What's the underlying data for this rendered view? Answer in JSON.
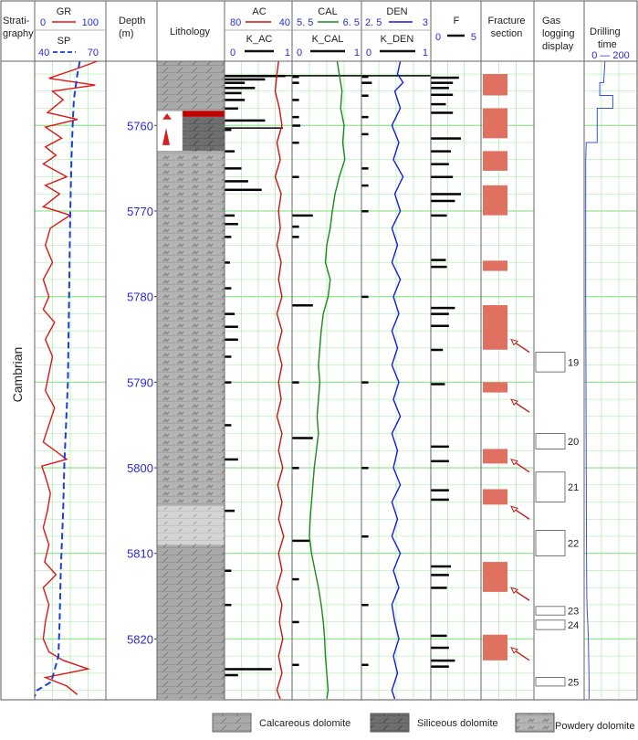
{
  "headers": {
    "strat": [
      "Strati-",
      "graphy"
    ],
    "depth": [
      "Depth",
      "(m)"
    ],
    "lithology": "Lithology",
    "gr": {
      "name": "GR",
      "min": "0",
      "max": "100"
    },
    "sp": {
      "name": "SP",
      "min": "40",
      "max": "70"
    },
    "ac": {
      "name": "AC",
      "min": "80",
      "max": "40"
    },
    "k_ac": {
      "name": "K_AC",
      "min": "0",
      "max": "1"
    },
    "cal": {
      "name": "CAL",
      "min": "5. 5",
      "max": "6. 5"
    },
    "k_cal": {
      "name": "K_CAL",
      "min": "0",
      "max": "1"
    },
    "den": {
      "name": "DEN",
      "min": "2. 5",
      "max": "3"
    },
    "k_den": {
      "name": "K_DEN",
      "min": "0",
      "max": "1"
    },
    "f": {
      "name": "F",
      "min": "0",
      "max": "5"
    },
    "fracture": [
      "Fracture",
      "section"
    ],
    "gas": [
      "Gas",
      "logging",
      "display"
    ],
    "drill": [
      "Drilling",
      "time"
    ],
    "drill_range": "0 — 200"
  },
  "stratigraphy": "Cambrian",
  "legend": {
    "calcareous": "Calcareous dolomite",
    "siliceous": "Siliceous dolomite",
    "powdery": "Powdery dolomite"
  },
  "colors": {
    "grid": "#9be89b",
    "gr": "#e01515",
    "sp": "#1a3fd6",
    "ac": "#cc1111",
    "cal": "#1a8a1a",
    "den": "#1a1ae0",
    "fracture": "#e07060",
    "drill": "#3a4fe0",
    "calcareous": "#a9a9a9",
    "siliceous": "#6e6e6e",
    "powdery": "#c8c8c8"
  },
  "chart_data": {
    "type": "line",
    "depth_range": [
      5752.5,
      5827
    ],
    "depth_ticks": [
      5760,
      5770,
      5780,
      5790,
      5800,
      5810,
      5820
    ],
    "lithology": [
      {
        "top": 5752.5,
        "bottom": 5758.3,
        "type": "calcareous"
      },
      {
        "top": 5758.3,
        "bottom": 5759.0,
        "type": "red"
      },
      {
        "top": 5759.0,
        "bottom": 5763.0,
        "type": "siliceous"
      },
      {
        "top": 5763.0,
        "bottom": 5804.5,
        "type": "powdery"
      },
      {
        "top": 5804.5,
        "bottom": 5809.0,
        "type": "light"
      },
      {
        "top": 5809.0,
        "bottom": 5827.0,
        "type": "calcareous"
      }
    ],
    "fracture_sections": [
      {
        "top": 5754.0,
        "bottom": 5756.5
      },
      {
        "top": 5758.0,
        "bottom": 5761.5
      },
      {
        "top": 5763.0,
        "bottom": 5765.3
      },
      {
        "top": 5767.0,
        "bottom": 5770.5
      },
      {
        "top": 5775.8,
        "bottom": 5777.0
      },
      {
        "top": 5781.0,
        "bottom": 5786.2
      },
      {
        "top": 5790.0,
        "bottom": 5791.2
      },
      {
        "top": 5797.8,
        "bottom": 5799.5
      },
      {
        "top": 5802.5,
        "bottom": 5804.3
      },
      {
        "top": 5811.0,
        "bottom": 5814.5
      },
      {
        "top": 5819.5,
        "bottom": 5822.5
      }
    ],
    "fracture_arrows": [
      5786.5,
      5793.5,
      5800.5,
      5806.0,
      5815.5,
      5822.5
    ],
    "gas_display": [
      {
        "label": "19",
        "top": 5786.5,
        "bottom": 5788.8
      },
      {
        "label": "20",
        "top": 5796.0,
        "bottom": 5797.8
      },
      {
        "label": "21",
        "top": 5800.5,
        "bottom": 5804.0
      },
      {
        "label": "22",
        "top": 5807.3,
        "bottom": 5810.3
      },
      {
        "label": "23",
        "top": 5816.2,
        "bottom": 5817.2
      },
      {
        "label": "24",
        "top": 5817.8,
        "bottom": 5818.9
      },
      {
        "label": "25",
        "top": 5824.5,
        "bottom": 5825.5
      }
    ],
    "gr": [
      [
        5752.5,
        88
      ],
      [
        5753.5,
        55
      ],
      [
        5754.5,
        20
      ],
      [
        5755.3,
        85
      ],
      [
        5756,
        25
      ],
      [
        5757,
        40
      ],
      [
        5758.5,
        18
      ],
      [
        5759.3,
        60
      ],
      [
        5760.2,
        15
      ],
      [
        5761.5,
        38
      ],
      [
        5762.5,
        15
      ],
      [
        5763.5,
        30
      ],
      [
        5764.5,
        12
      ],
      [
        5766,
        45
      ],
      [
        5767,
        15
      ],
      [
        5768,
        35
      ],
      [
        5769.5,
        12
      ],
      [
        5770.5,
        50
      ],
      [
        5772,
        22
      ],
      [
        5774,
        15
      ],
      [
        5776,
        25
      ],
      [
        5778,
        12
      ],
      [
        5780,
        20
      ],
      [
        5781.5,
        12
      ],
      [
        5783,
        28
      ],
      [
        5785,
        15
      ],
      [
        5787,
        25
      ],
      [
        5789,
        20
      ],
      [
        5791,
        15
      ],
      [
        5793,
        28
      ],
      [
        5795,
        20
      ],
      [
        5797,
        12
      ],
      [
        5799,
        45
      ],
      [
        5799.8,
        10
      ],
      [
        5801,
        15
      ],
      [
        5803,
        22
      ],
      [
        5805,
        18
      ],
      [
        5807,
        12
      ],
      [
        5809,
        20
      ],
      [
        5811,
        14
      ],
      [
        5812.5,
        30
      ],
      [
        5814,
        12
      ],
      [
        5816,
        20
      ],
      [
        5818,
        15
      ],
      [
        5820,
        12
      ],
      [
        5821.5,
        20
      ],
      [
        5822.5,
        40
      ],
      [
        5823.5,
        75
      ],
      [
        5824.5,
        15
      ],
      [
        5825.5,
        45
      ],
      [
        5826.5,
        60
      ]
    ],
    "sp": [
      [
        5752.5,
        59
      ],
      [
        5754,
        58
      ],
      [
        5757,
        56.5
      ],
      [
        5760,
        56
      ],
      [
        5764,
        55.5
      ],
      [
        5770,
        55
      ],
      [
        5780,
        54.5
      ],
      [
        5790,
        54
      ],
      [
        5799.5,
        52.5
      ],
      [
        5805,
        52
      ],
      [
        5812,
        51
      ],
      [
        5818,
        50.5
      ],
      [
        5822,
        50
      ],
      [
        5825,
        47
      ],
      [
        5826,
        41
      ],
      [
        5826.7,
        40
      ]
    ],
    "ac": [
      [
        5752.5,
        48
      ],
      [
        5754,
        49
      ],
      [
        5756,
        50
      ],
      [
        5758,
        47.5
      ],
      [
        5760,
        46
      ],
      [
        5762,
        49
      ],
      [
        5764,
        47
      ],
      [
        5766,
        50
      ],
      [
        5768,
        46.5
      ],
      [
        5770,
        48
      ],
      [
        5772,
        47
      ],
      [
        5774,
        49
      ],
      [
        5776,
        46.5
      ],
      [
        5778,
        48
      ],
      [
        5780,
        46
      ],
      [
        5782,
        49
      ],
      [
        5784,
        46
      ],
      [
        5786,
        48.5
      ],
      [
        5788,
        46
      ],
      [
        5790,
        48
      ],
      [
        5792,
        46.5
      ],
      [
        5794,
        49
      ],
      [
        5796,
        46
      ],
      [
        5798,
        48
      ],
      [
        5800,
        45.5
      ],
      [
        5802,
        48.5
      ],
      [
        5804,
        46
      ],
      [
        5806,
        48
      ],
      [
        5808,
        45
      ],
      [
        5810,
        48
      ],
      [
        5812,
        46
      ],
      [
        5814,
        49
      ],
      [
        5816,
        46
      ],
      [
        5818,
        47.5
      ],
      [
        5820,
        45.5
      ],
      [
        5822,
        48
      ],
      [
        5824,
        46
      ],
      [
        5826,
        49
      ],
      [
        5827,
        47
      ]
    ],
    "cal": [
      [
        5752.5,
        6.15
      ],
      [
        5754,
        6.18
      ],
      [
        5756,
        6.22
      ],
      [
        5758,
        6.2
      ],
      [
        5760,
        6.25
      ],
      [
        5762,
        6.23
      ],
      [
        5764,
        6.26
      ],
      [
        5766,
        6.18
      ],
      [
        5768,
        6.12
      ],
      [
        5770,
        6.08
      ],
      [
        5772,
        6.05
      ],
      [
        5774,
        6.0
      ],
      [
        5776,
        5.98
      ],
      [
        5778,
        6.05
      ],
      [
        5780,
        6.02
      ],
      [
        5782,
        5.95
      ],
      [
        5784,
        5.92
      ],
      [
        5786,
        5.9
      ],
      [
        5788,
        5.88
      ],
      [
        5790,
        5.9
      ],
      [
        5792,
        5.88
      ],
      [
        5794,
        5.86
      ],
      [
        5796,
        5.88
      ],
      [
        5798,
        5.85
      ],
      [
        5800,
        5.82
      ],
      [
        5802,
        5.8
      ],
      [
        5804,
        5.78
      ],
      [
        5806,
        5.76
      ],
      [
        5808,
        5.75
      ],
      [
        5810,
        5.78
      ],
      [
        5812,
        5.83
      ],
      [
        5814,
        5.88
      ],
      [
        5816,
        5.92
      ],
      [
        5818,
        5.95
      ],
      [
        5820,
        5.97
      ],
      [
        5822,
        5.98
      ],
      [
        5824,
        6.0
      ],
      [
        5826,
        6.02
      ],
      [
        5827,
        6.0
      ]
    ],
    "den": [
      [
        5752.5,
        2.78
      ],
      [
        5754,
        2.76
      ],
      [
        5755,
        2.8
      ],
      [
        5756,
        2.74
      ],
      [
        5758,
        2.78
      ],
      [
        5760,
        2.72
      ],
      [
        5762,
        2.77
      ],
      [
        5764,
        2.73
      ],
      [
        5766,
        2.8
      ],
      [
        5768,
        2.74
      ],
      [
        5770,
        2.78
      ],
      [
        5772,
        2.72
      ],
      [
        5774,
        2.76
      ],
      [
        5776,
        2.72
      ],
      [
        5778,
        2.78
      ],
      [
        5780,
        2.73
      ],
      [
        5782,
        2.77
      ],
      [
        5784,
        2.72
      ],
      [
        5786,
        2.76
      ],
      [
        5788,
        2.72
      ],
      [
        5790,
        2.77
      ],
      [
        5792,
        2.73
      ],
      [
        5794,
        2.78
      ],
      [
        5796,
        2.72
      ],
      [
        5798,
        2.76
      ],
      [
        5800,
        2.73
      ],
      [
        5802,
        2.78
      ],
      [
        5804,
        2.72
      ],
      [
        5806,
        2.76
      ],
      [
        5808,
        2.72
      ],
      [
        5810,
        2.78
      ],
      [
        5812,
        2.73
      ],
      [
        5814,
        2.77
      ],
      [
        5816,
        2.72
      ],
      [
        5818,
        2.74
      ],
      [
        5820,
        2.77
      ],
      [
        5822,
        2.73
      ],
      [
        5824,
        2.76
      ],
      [
        5826,
        2.72
      ],
      [
        5827,
        2.74
      ]
    ],
    "k_ac": [
      [
        5754.2,
        0.9
      ],
      [
        5754.6,
        0.6
      ],
      [
        5755,
        0.3
      ],
      [
        5755.6,
        0.45
      ],
      [
        5756.2,
        0.25
      ],
      [
        5757,
        0.3
      ],
      [
        5758,
        0.2
      ],
      [
        5759.4,
        0.6
      ],
      [
        5760.5,
        0.1
      ],
      [
        5763,
        0.15
      ],
      [
        5765,
        0.25
      ],
      [
        5766.5,
        0.35
      ],
      [
        5767.5,
        0.55
      ],
      [
        5770.5,
        0.15
      ],
      [
        5771.5,
        0.2
      ],
      [
        5773,
        0.1
      ],
      [
        5776,
        0.08
      ],
      [
        5779,
        0.1
      ],
      [
        5782,
        0.15
      ],
      [
        5783.5,
        0.2
      ],
      [
        5785,
        0.2
      ],
      [
        5787,
        0.1
      ],
      [
        5790,
        0.1
      ],
      [
        5795,
        0.1
      ],
      [
        5799,
        0.2
      ],
      [
        5805,
        0.15
      ],
      [
        5812,
        0.1
      ],
      [
        5816,
        0.1
      ],
      [
        5823.5,
        0.7
      ],
      [
        5824.2,
        0.2
      ]
    ],
    "k_cal": [
      [
        5754.3,
        0.1
      ],
      [
        5755,
        0.1
      ],
      [
        5757,
        0.1
      ],
      [
        5759,
        0.1
      ],
      [
        5760,
        0.12
      ],
      [
        5762,
        0.1
      ],
      [
        5766,
        0.1
      ],
      [
        5770.5,
        0.3
      ],
      [
        5771.8,
        0.1
      ],
      [
        5773,
        0.1
      ],
      [
        5781,
        0.3
      ],
      [
        5790,
        0.1
      ],
      [
        5796.5,
        0.3
      ],
      [
        5800,
        0.1
      ],
      [
        5808.5,
        0.25
      ],
      [
        5813,
        0.1
      ],
      [
        5818,
        0.1
      ],
      [
        5823,
        0.1
      ]
    ],
    "k_den": [
      [
        5754.3,
        0.1
      ],
      [
        5755,
        0.15
      ],
      [
        5756.5,
        0.1
      ],
      [
        5759,
        0.1
      ],
      [
        5761,
        0.1
      ],
      [
        5765,
        0.1
      ],
      [
        5767,
        0.1
      ],
      [
        5770,
        0.1
      ],
      [
        5780,
        0.1
      ],
      [
        5790,
        0.1
      ],
      [
        5800,
        0.1
      ],
      [
        5808,
        0.1
      ],
      [
        5816,
        0.1
      ],
      [
        5823,
        0.1
      ]
    ],
    "f": [
      [
        5754.4,
        2.8
      ],
      [
        5755,
        2.2
      ],
      [
        5755.6,
        1.8
      ],
      [
        5756.4,
        2.2
      ],
      [
        5757.5,
        1.5
      ],
      [
        5758.5,
        2.2
      ],
      [
        5761.5,
        3.0
      ],
      [
        5763,
        2.0
      ],
      [
        5764.5,
        1.8
      ],
      [
        5766,
        2.2
      ],
      [
        5768,
        3.0
      ],
      [
        5768.8,
        2.4
      ],
      [
        5770.5,
        1.6
      ],
      [
        5775.7,
        1.5
      ],
      [
        5776.5,
        1.6
      ],
      [
        5781.3,
        2.4
      ],
      [
        5782,
        1.8
      ],
      [
        5783.4,
        1.8
      ],
      [
        5786.2,
        1.2
      ],
      [
        5790.2,
        1.4
      ],
      [
        5797.5,
        1.8
      ],
      [
        5799.2,
        1.8
      ],
      [
        5802.6,
        1.8
      ],
      [
        5803.7,
        1.8
      ],
      [
        5811.5,
        2.0
      ],
      [
        5812.5,
        1.8
      ],
      [
        5814,
        1.6
      ],
      [
        5819.6,
        1.6
      ],
      [
        5821,
        1.8
      ],
      [
        5822.5,
        2.4
      ],
      [
        5823.2,
        1.8
      ]
    ],
    "drilling_time": [
      [
        5752.5,
        80
      ],
      [
        5755,
        75
      ],
      [
        5755,
        60
      ],
      [
        5756.5,
        60
      ],
      [
        5756.5,
        110
      ],
      [
        5758,
        110
      ],
      [
        5758,
        50
      ],
      [
        5762,
        50
      ],
      [
        5762,
        8
      ],
      [
        5764,
        6
      ],
      [
        5770,
        6
      ],
      [
        5780,
        6
      ],
      [
        5790,
        7
      ],
      [
        5800,
        8
      ],
      [
        5810,
        9
      ],
      [
        5815,
        10
      ],
      [
        5817,
        12
      ],
      [
        5818,
        14
      ],
      [
        5820,
        16
      ],
      [
        5823,
        18
      ],
      [
        5825,
        19
      ],
      [
        5827,
        19
      ]
    ]
  }
}
